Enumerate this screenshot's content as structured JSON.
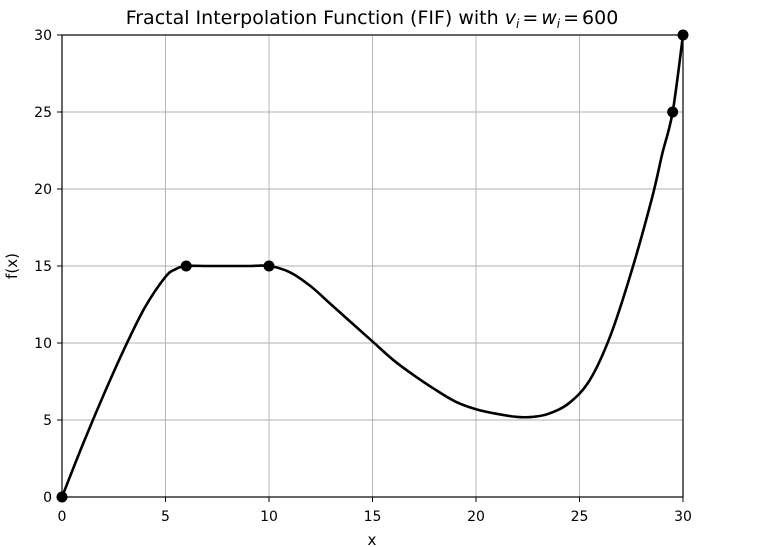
{
  "chart_data": {
    "type": "line",
    "title_prefix": "Fractal Interpolation Function (FIF) with ",
    "title_math": {
      "v": "v",
      "w": "w",
      "sub": "i",
      "eq": "=",
      "value": "600"
    },
    "xlabel": "x",
    "ylabel": "f(x)",
    "xlim": [
      0,
      30
    ],
    "ylim": [
      0,
      30
    ],
    "xticks": [
      0,
      5,
      10,
      15,
      20,
      25,
      30
    ],
    "yticks": [
      0,
      5,
      10,
      15,
      20,
      25,
      30
    ],
    "grid": true,
    "line_color": "#000000",
    "series": [
      {
        "x": [
          0,
          1,
          2,
          3,
          4,
          5,
          5.5,
          6,
          7,
          8,
          9,
          10,
          11,
          12,
          13,
          14,
          15,
          16,
          17,
          18,
          19,
          20,
          21,
          22,
          22.7,
          23.5,
          24.5,
          25.5,
          26.5,
          27.5,
          28.5,
          29,
          29.5,
          30
        ],
        "y": [
          0,
          3.4,
          6.6,
          9.6,
          12.3,
          14.3,
          14.8,
          15,
          15,
          15,
          15,
          15,
          14.6,
          13.7,
          12.5,
          11.3,
          10.1,
          8.9,
          7.9,
          7,
          6.2,
          5.7,
          5.4,
          5.2,
          5.2,
          5.4,
          6.1,
          7.6,
          10.5,
          14.6,
          19.4,
          22.3,
          25,
          30
        ]
      }
    ],
    "points": {
      "x": [
        0,
        6,
        10,
        29.5,
        30
      ],
      "y": [
        0,
        15,
        15,
        25,
        30
      ]
    }
  }
}
